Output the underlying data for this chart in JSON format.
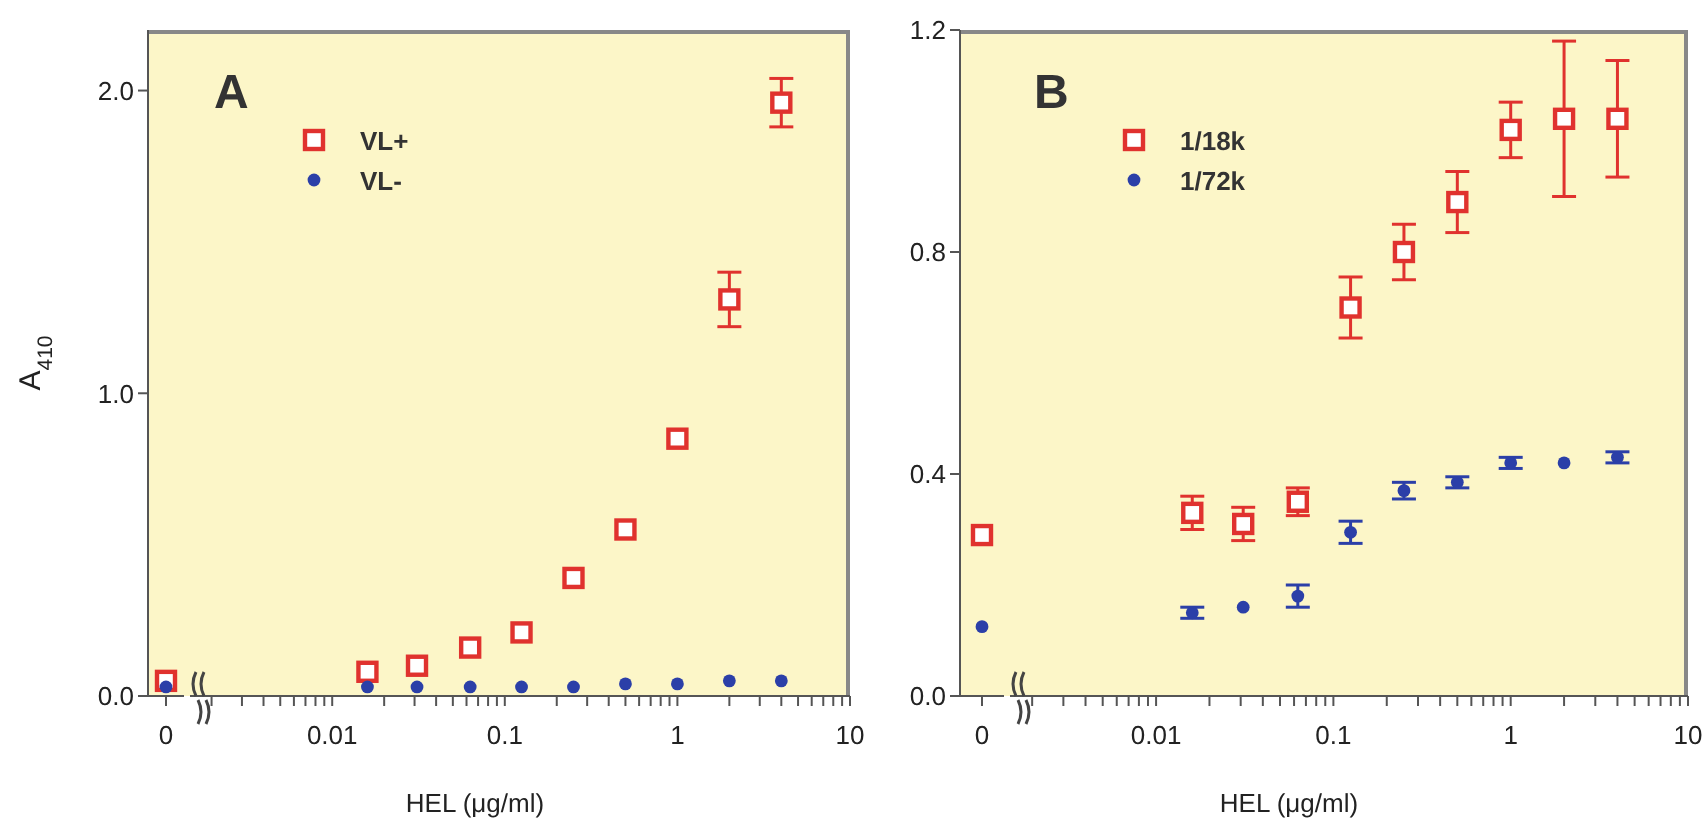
{
  "chart_data": [
    {
      "type": "scatter",
      "ylabel": "A$_{410}$",
      "categories": [
        "0"
      ],
      "ylim": [
        0,
        2.2
      ],
      "yticks": [
        {
          "value": 0,
          "label": "0.0"
        },
        {
          "value": 1,
          "label": "1.0"
        },
        {
          "value": 2,
          "label": "2.0"
        }
      ],
      "series": [
        {
          "color": "#e0322e",
          "marker": "square",
          "values": [
            0.05
          ]
        },
        {
          "color": "#2b3fa8",
          "marker": "circle",
          "values": [
            0.03
          ]
        }
      ]
    },
    {
      "type": "scatter",
      "title": "A",
      "xlabel": "HEL (μg/ml)",
      "log": "x",
      "legend": "top left",
      "tick_labels": "x",
      "x": [
        0.016,
        0.031,
        0.063,
        0.125,
        0.25,
        0.5,
        1,
        2,
        4
      ],
      "xlim": [
        0.0015,
        10
      ],
      "ylim": [
        0,
        2.2
      ],
      "xticks": [
        {
          "value": 0.002,
          "label": null
        },
        {
          "value": 0.003,
          "label": null
        },
        {
          "value": 0.004,
          "label": null
        },
        {
          "value": 0.005,
          "label": null
        },
        {
          "value": 0.006,
          "label": null
        },
        {
          "value": 0.007,
          "label": null
        },
        {
          "value": 0.008,
          "label": null
        },
        {
          "value": 0.009,
          "label": null
        },
        0.01,
        {
          "value": 0.02,
          "label": null
        },
        {
          "value": 0.03,
          "label": null
        },
        {
          "value": 0.04,
          "label": null
        },
        {
          "value": 0.05,
          "label": null
        },
        {
          "value": 0.06,
          "label": null
        },
        {
          "value": 0.07,
          "label": null
        },
        {
          "value": 0.08,
          "label": null
        },
        {
          "value": 0.09,
          "label": null
        },
        0.1,
        {
          "value": 0.2,
          "label": null
        },
        {
          "value": 0.3,
          "label": null
        },
        {
          "value": 0.4,
          "label": null
        },
        {
          "value": 0.5,
          "label": null
        },
        {
          "value": 0.6,
          "label": null
        },
        {
          "value": 0.7,
          "label": null
        },
        {
          "value": 0.8,
          "label": null
        },
        {
          "value": 0.9,
          "label": null
        },
        1,
        {
          "value": 2,
          "label": null
        },
        {
          "value": 3,
          "label": null
        },
        {
          "value": 4,
          "label": null
        },
        {
          "value": 5,
          "label": null
        },
        {
          "value": 6,
          "label": null
        },
        {
          "value": 7,
          "label": null
        },
        {
          "value": 8,
          "label": null
        },
        {
          "value": 9,
          "label": null
        },
        10
      ],
      "series": [
        {
          "name": "VL+",
          "color": "#e0322e",
          "marker": "square",
          "values": [
            0.08,
            0.1,
            0.16,
            0.21,
            0.39,
            0.55,
            0.85,
            1.31,
            1.96
          ],
          "errors": [
            null,
            null,
            null,
            null,
            null,
            null,
            null,
            0.09,
            0.08
          ]
        },
        {
          "name": "VL-",
          "color": "#2b3fa8",
          "marker": "circle",
          "values": [
            0.03,
            0.03,
            0.03,
            0.03,
            0.03,
            0.04,
            0.04,
            0.05,
            0.05
          ]
        }
      ]
    },
    {
      "type": "scatter",
      "categories": [
        "0"
      ],
      "ylim": [
        0,
        1.2
      ],
      "yticks": [
        {
          "value": 0,
          "label": "0.0"
        },
        {
          "value": 0.4,
          "label": "0.4"
        },
        {
          "value": 0.8,
          "label": "0.8"
        },
        {
          "value": 1.2,
          "label": "1.2"
        }
      ],
      "series": [
        {
          "color": "#e0322e",
          "marker": "square",
          "values": [
            0.29
          ]
        },
        {
          "color": "#2b3fa8",
          "marker": "circle",
          "values": [
            0.125
          ]
        }
      ]
    },
    {
      "type": "scatter",
      "title": "B",
      "xlabel": "HEL (μg/ml)",
      "log": "x",
      "legend": "top left",
      "tick_labels": "x",
      "x": [
        0.016,
        0.031,
        0.063,
        0.125,
        0.25,
        0.5,
        1,
        2,
        4
      ],
      "xlim": [
        0.0015,
        10
      ],
      "ylim": [
        0,
        1.2
      ],
      "xticks": [
        {
          "value": 0.002,
          "label": null
        },
        {
          "value": 0.003,
          "label": null
        },
        {
          "value": 0.004,
          "label": null
        },
        {
          "value": 0.005,
          "label": null
        },
        {
          "value": 0.006,
          "label": null
        },
        {
          "value": 0.007,
          "label": null
        },
        {
          "value": 0.008,
          "label": null
        },
        {
          "value": 0.009,
          "label": null
        },
        0.01,
        {
          "value": 0.02,
          "label": null
        },
        {
          "value": 0.03,
          "label": null
        },
        {
          "value": 0.04,
          "label": null
        },
        {
          "value": 0.05,
          "label": null
        },
        {
          "value": 0.06,
          "label": null
        },
        {
          "value": 0.07,
          "label": null
        },
        {
          "value": 0.08,
          "label": null
        },
        {
          "value": 0.09,
          "label": null
        },
        0.1,
        {
          "value": 0.2,
          "label": null
        },
        {
          "value": 0.3,
          "label": null
        },
        {
          "value": 0.4,
          "label": null
        },
        {
          "value": 0.5,
          "label": null
        },
        {
          "value": 0.6,
          "label": null
        },
        {
          "value": 0.7,
          "label": null
        },
        {
          "value": 0.8,
          "label": null
        },
        {
          "value": 0.9,
          "label": null
        },
        1,
        {
          "value": 2,
          "label": null
        },
        {
          "value": 3,
          "label": null
        },
        {
          "value": 4,
          "label": null
        },
        {
          "value": 5,
          "label": null
        },
        {
          "value": 6,
          "label": null
        },
        {
          "value": 7,
          "label": null
        },
        {
          "value": 8,
          "label": null
        },
        {
          "value": 9,
          "label": null
        },
        10
      ],
      "series": [
        {
          "name": "1/18k",
          "color": "#e0322e",
          "marker": "square",
          "values": [
            0.33,
            0.31,
            0.35,
            0.7,
            0.8,
            0.89,
            1.02,
            1.04,
            1.04
          ],
          "errors": [
            0.03,
            0.03,
            0.025,
            0.055,
            0.05,
            0.055,
            0.05,
            0.14,
            0.105
          ]
        },
        {
          "name": "1/72k",
          "color": "#2b3fa8",
          "marker": "circle",
          "values": [
            0.15,
            0.16,
            0.18,
            0.295,
            0.37,
            0.385,
            0.42,
            0.42,
            0.43
          ],
          "errors": [
            0.01,
            null,
            0.02,
            0.02,
            0.015,
            0.01,
            0.01,
            null,
            0.01
          ]
        }
      ]
    }
  ]
}
